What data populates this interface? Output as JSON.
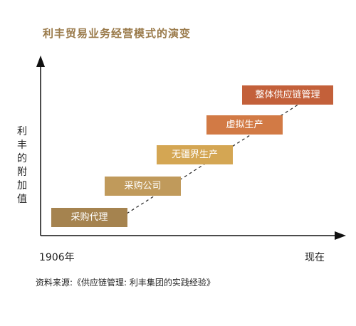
{
  "title": "利丰贸易业务经营模式的演变",
  "y_axis_label": "利丰的附加值",
  "x_axis": {
    "start": "1906年",
    "end": "现在"
  },
  "stages": [
    {
      "label": "采购代理",
      "color": "#a5834f"
    },
    {
      "label": "采购公司",
      "color": "#c09a5b"
    },
    {
      "label": "无疆界生产",
      "color": "#d4a653"
    },
    {
      "label": "虚拟生产",
      "color": "#d27a45"
    },
    {
      "label": "整体供应链管理",
      "color": "#c3603a"
    }
  ],
  "source": "资料来源:《供应链管理: 利丰集团的实践经验》"
}
